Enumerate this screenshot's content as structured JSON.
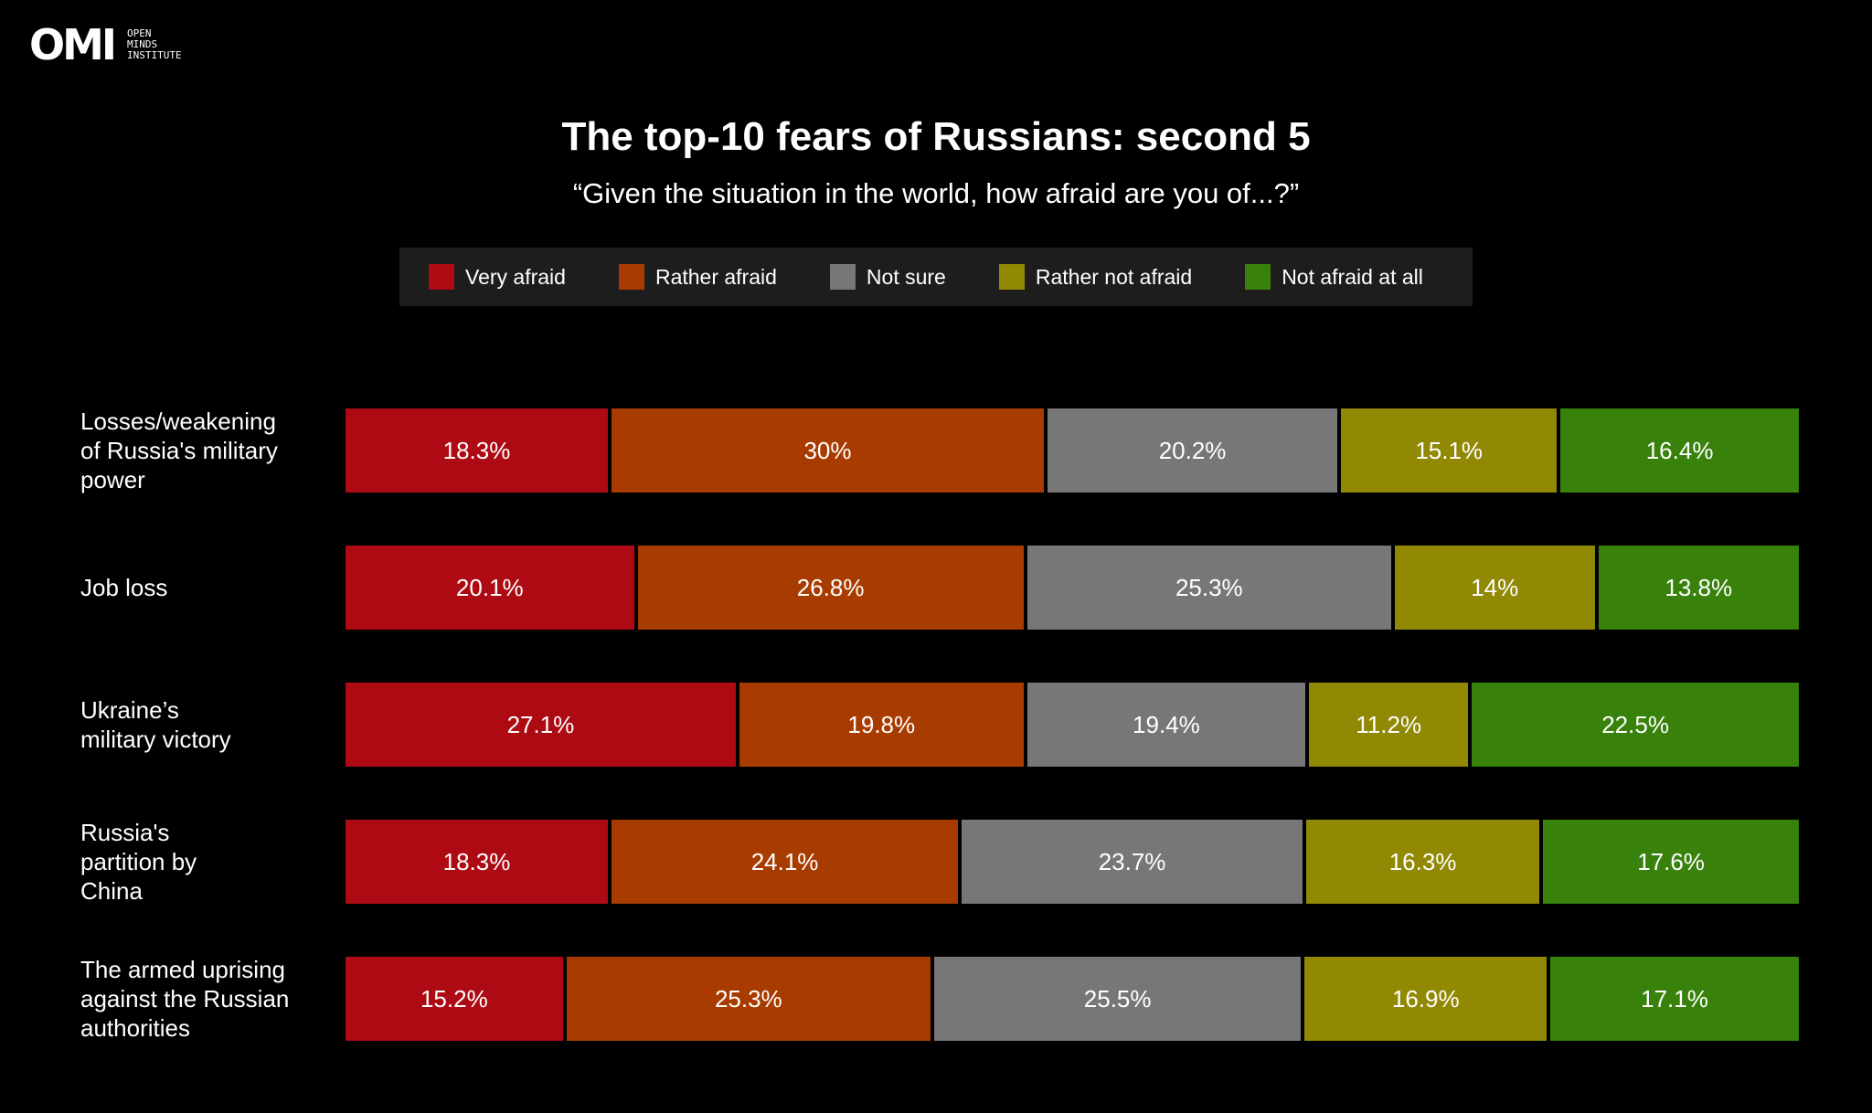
{
  "logo": {
    "mark": "OMI",
    "lines": [
      "OPEN",
      "MINDS",
      "INSTITUTE"
    ]
  },
  "chart_data": {
    "type": "bar",
    "orientation": "horizontal",
    "stacked": true,
    "title": "The top-10 fears of Russians: second 5",
    "subtitle": "“Given the situation in the world, how afraid are you of...?”",
    "legend_position": "top",
    "categories": [
      "Losses/weakening of Russia's military power",
      "Job loss",
      "Ukraine’s military victory",
      "Russia's partition by China",
      "The armed uprising against the Russian authorities"
    ],
    "series": [
      {
        "name": "Very afraid",
        "color": "#ad0a14",
        "values": [
          18.3,
          20.1,
          27.1,
          18.3,
          15.2
        ],
        "labels": [
          "18.3%",
          "20.1%",
          "27.1%",
          "18.3%",
          "15.2%"
        ]
      },
      {
        "name": "Rather afraid",
        "color": "#a83c00",
        "values": [
          30,
          26.8,
          19.8,
          24.1,
          25.3
        ],
        "labels": [
          "30%",
          "26.8%",
          "19.8%",
          "24.1%",
          "25.3%"
        ]
      },
      {
        "name": "Not sure",
        "color": "#777777",
        "values": [
          20.2,
          25.3,
          19.4,
          23.7,
          25.5
        ],
        "labels": [
          "20.2%",
          "25.3%",
          "19.4%",
          "23.7%",
          "25.5%"
        ]
      },
      {
        "name": "Rather not afraid",
        "color": "#918804",
        "values": [
          15.1,
          14,
          11.2,
          16.3,
          16.9
        ],
        "labels": [
          "15.1%",
          "14%",
          "11.2%",
          "16.3%",
          "16.9%"
        ]
      },
      {
        "name": "Not afraid at all",
        "color": "#38820c",
        "values": [
          16.4,
          13.8,
          22.5,
          17.6,
          17.1
        ],
        "labels": [
          "16.4%",
          "13.8%",
          "22.5%",
          "17.6%",
          "17.1%"
        ]
      }
    ]
  },
  "row_label_lines": [
    [
      "Losses/weakening",
      "of Russia's military",
      "power"
    ],
    [
      "Job loss"
    ],
    [
      "Ukraine’s",
      "military victory"
    ],
    [
      "Russia's",
      "partition by",
      "China"
    ],
    [
      "The armed uprising",
      "against the Russian",
      "authorities"
    ]
  ]
}
